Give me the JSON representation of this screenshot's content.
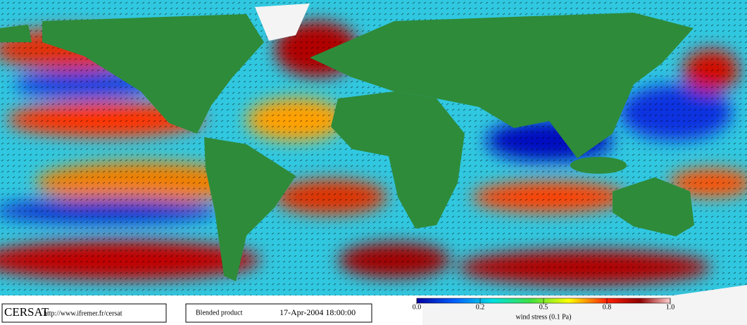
{
  "footer": {
    "logo": "CERSAT",
    "url": "http://www.ifremer.fr/cersat",
    "product": "Blended product",
    "timestamp": "17-Apr-2004 18:00:00"
  },
  "colorbar": {
    "ticks": [
      {
        "value": 0,
        "label": "0.0"
      },
      0.2,
      0.5,
      0.8,
      {
        "value": 1,
        "label": "1.0"
      }
    ],
    "label": "wind stress (0.1 Pa)"
  }
}
